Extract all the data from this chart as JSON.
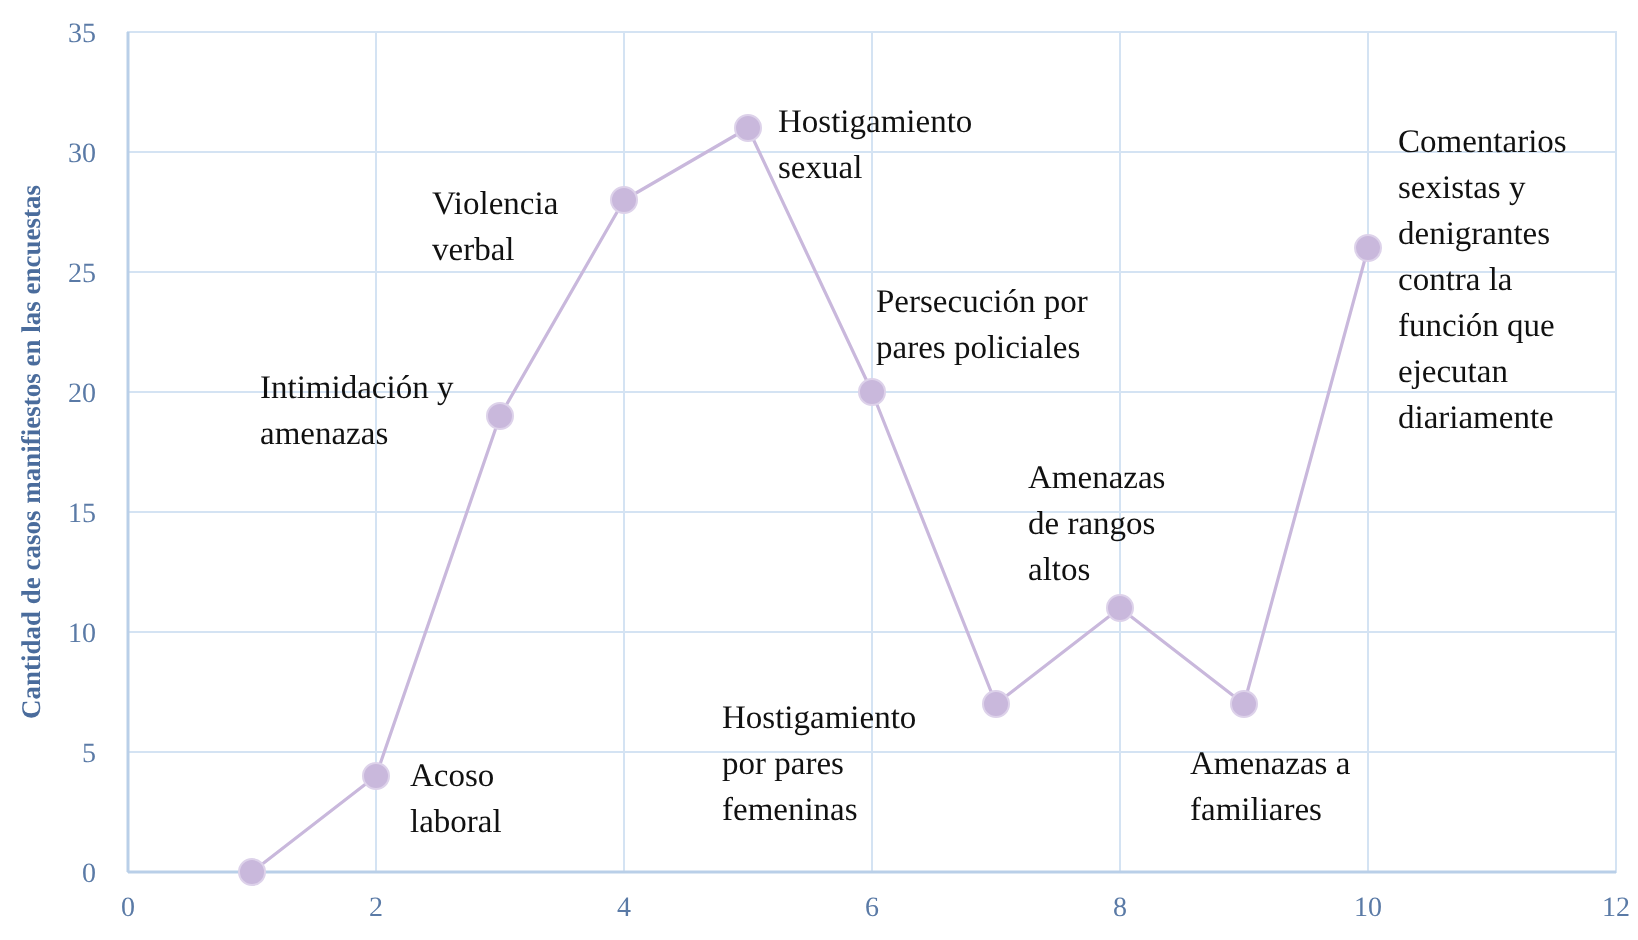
{
  "chart_data": {
    "type": "line",
    "ylabel": "Cantidad de casos manifiestos en las encuestas",
    "x": [
      1,
      2,
      3,
      4,
      5,
      6,
      7,
      8,
      9,
      10
    ],
    "series": [
      {
        "color": "#c9b8dc",
        "values": [
          0,
          4,
          19,
          28,
          31,
          20,
          7,
          11,
          7,
          26
        ]
      }
    ],
    "xlim": [
      0,
      12
    ],
    "xticks": [
      0,
      2,
      4,
      6,
      8,
      10,
      12
    ],
    "ylim": [
      0,
      35
    ],
    "yticks": [
      0,
      5,
      10,
      15,
      20,
      25,
      30,
      35
    ],
    "grid": true,
    "marker": "circle",
    "line_style": "solid",
    "annotations": [
      {
        "text": "Acoso\nlaboral",
        "x": 2,
        "y": 4
      },
      {
        "text": "Intimidación  y\namenazas",
        "x": 3,
        "y": 19
      },
      {
        "text": "Violencia\nverbal",
        "x": 4,
        "y": 28
      },
      {
        "text": "Hostigamiento\nsexual",
        "x": 5,
        "y": 31
      },
      {
        "text": "Persecución por\npares policiales",
        "x": 6,
        "y": 20
      },
      {
        "text": "Hostigamiento\npor pares\nfemeninas",
        "x": 7,
        "y": 7
      },
      {
        "text": "Amenazas\nde rangos\naltos",
        "x": 8,
        "y": 11
      },
      {
        "text": "Amenazas a\nfamiliares",
        "x": 9,
        "y": 7
      },
      {
        "text": "Comentarios\nsexistas y\ndenigrantes\ncontra la\nfunción  que\nejecutan\ndiariamente",
        "x": 10,
        "y": 26
      }
    ]
  }
}
